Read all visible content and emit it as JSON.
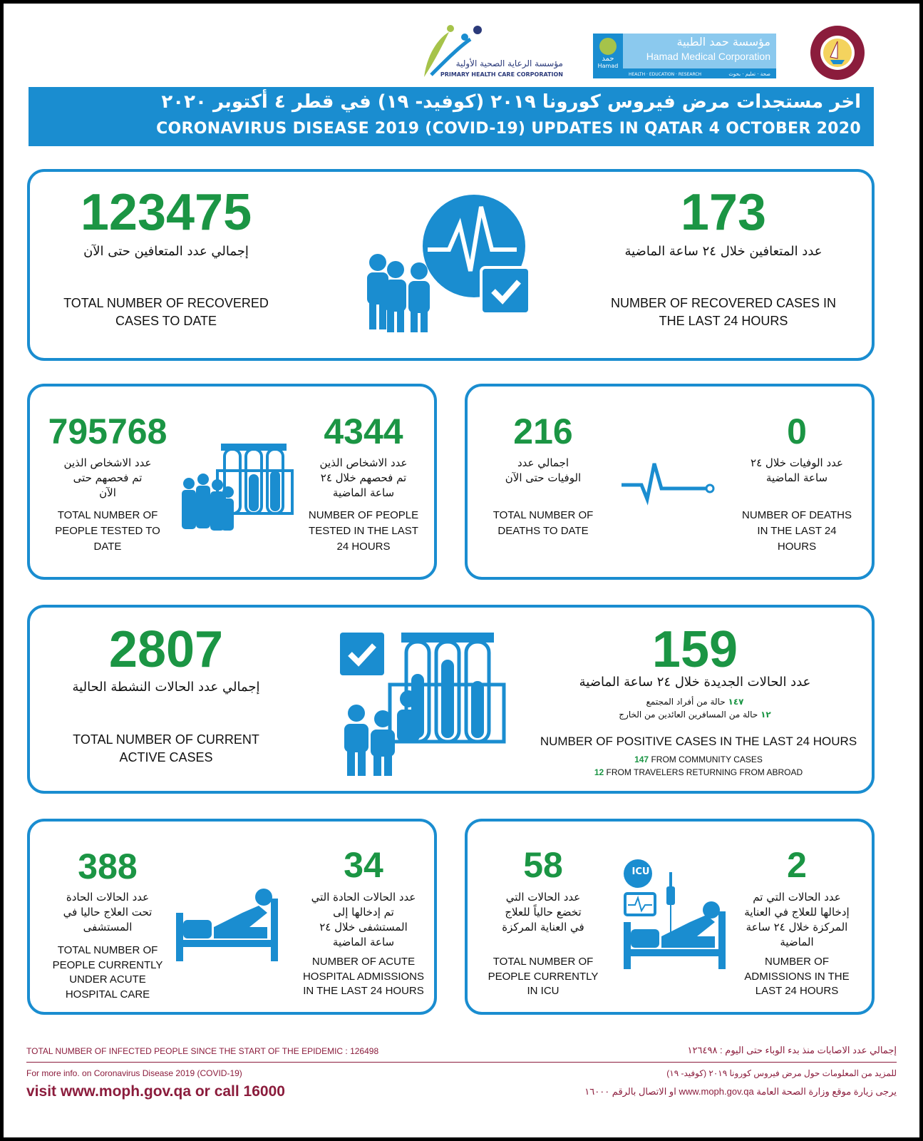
{
  "logos": {
    "phcc_ar": "مؤسسة الرعاية الصحية الأولية",
    "phcc_en": "PRIMARY HEALTH CARE CORPORATION",
    "hmc_ar": "مؤسسة حمد الطبية",
    "hmc_en": "Hamad Medical Corporation",
    "hmc_tag": "HEALTH · EDUCATION · RESEARCH",
    "hmc_tag_ar": "صحة · تعليم · بحوث",
    "hmc_short_ar": "حمد",
    "hmc_short": "Hamad",
    "moph": "دولة قطر وزارة الصحة العامة"
  },
  "header": {
    "title_ar": "اخر مستجدات مرض فيروس كورونا ٢٠١٩ (كوفيد- ١٩) في قطر ٤ أكتوبر ٢٠٢٠",
    "title_en": "CORONAVIRUS DISEASE 2019 (COVID-19) UPDATES IN QATAR 4 OCTOBER 2020"
  },
  "colors": {
    "accent": "#1a8dd0",
    "number": "#1b9544",
    "footer": "#8b1c3c"
  },
  "recovered": {
    "total": {
      "value": "123475",
      "ar": "إجمالي عدد المتعافين حتى الآن",
      "en": "TOTAL NUMBER OF RECOVERED\nCASES TO DATE"
    },
    "last24": {
      "value": "173",
      "ar": "عدد المتعافين خلال ٢٤ ساعة الماضية",
      "en": "NUMBER OF RECOVERED CASES IN\nTHE LAST 24 HOURS"
    },
    "icon": "recovered-people-heartbeat-check-icon"
  },
  "tests": {
    "total": {
      "value": "795768",
      "ar": "عدد الاشخاص الذين\nتم فحصهم حتى\nالآن",
      "en": "TOTAL NUMBER OF\nPEOPLE TESTED TO\nDATE"
    },
    "last24": {
      "value": "4344",
      "ar": "عدد الاشخاص الذين\nتم فحصهم خلال ٢٤\nساعة الماضية",
      "en": "NUMBER OF PEOPLE\nTESTED IN THE LAST\n24 HOURS"
    },
    "icon": "people-test-tubes-icon"
  },
  "deaths": {
    "total": {
      "value": "216",
      "ar": "اجمالي عدد\nالوفيات حتى الآن",
      "en": "TOTAL NUMBER OF\nDEATHS TO DATE"
    },
    "last24": {
      "value": "0",
      "ar": "عدد الوفيات خلال ٢٤\nساعة الماضية",
      "en": "NUMBER OF DEATHS\nIN THE LAST 24\nHOURS"
    },
    "icon": "flatline-icon"
  },
  "active": {
    "total": {
      "value": "2807",
      "ar": "إجمالي عدد الحالات النشطة الحالية",
      "en": "TOTAL NUMBER OF CURRENT\nACTIVE CASES"
    },
    "new": {
      "value": "159",
      "ar": "عدد الحالات الجديدة خلال ٢٤ ساعة الماضية",
      "ar_sub1_num": "١٤٧",
      "ar_sub1": " حالة من أفراد المجتمع",
      "ar_sub2_num": "١٢",
      "ar_sub2": " حالة من المسافرين العائدين من الخارج",
      "en": "NUMBER OF POSITIVE CASES IN THE LAST 24 HOURS",
      "en_sub1_num": "147",
      "en_sub1": " FROM COMMUNITY CASES",
      "en_sub2_num": "12",
      "en_sub2": " FROM TRAVELERS RETURNING FROM ABROAD"
    },
    "icon": "people-test-tubes-check-icon"
  },
  "hospital": {
    "total": {
      "value": "388",
      "ar": "عدد الحالات الحادة\nتحت العلاج حاليا في\nالمستشفى",
      "en": "TOTAL NUMBER OF\nPEOPLE CURRENTLY\nUNDER ACUTE\nHOSPITAL CARE"
    },
    "last24": {
      "value": "34",
      "ar": "عدد الحالات الحادة التي\nتم إدخالها إلى\nالمستشفى خلال ٢٤\nساعة الماضية",
      "en": "NUMBER OF ACUTE\nHOSPITAL ADMISSIONS\nIN THE LAST 24 HOURS"
    },
    "icon": "hospital-bed-icon"
  },
  "icu": {
    "total": {
      "value": "58",
      "ar": "عدد الحالات التي\nتخضع حالياً للعلاج\nفي العناية المركزة",
      "en": "TOTAL NUMBER OF\nPEOPLE CURRENTLY\nIN ICU"
    },
    "last24": {
      "value": "2",
      "ar": "عدد الحالات التي تم\nإدخالها للعلاج في العناية\nالمركزة خلال ٢٤ ساعة\nالماضية",
      "en": "NUMBER OF\nADMISSIONS IN THE\nLAST 24 HOURS"
    },
    "icu_label": "ICU",
    "icon": "icu-bed-monitor-icon"
  },
  "footer": {
    "infected_en": "TOTAL NUMBER OF INFECTED PEOPLE SINCE THE START OF THE EPIDEMIC  : 126498",
    "infected_ar": "إجمالي عدد الاصابات منذ بدء الوباء حتى اليوم : ١٢٦٤٩٨",
    "info_en": "For more info. on Coronavirus Disease 2019 (COVID-19)",
    "visit_en": "visit www.moph.gov.qa or call 16000",
    "info_ar": "للمزيد من المعلومات حول مرض فيروس كورونا ٢٠١٩ (كوفيد- ١٩)",
    "visit_ar": "يرجى زيارة موقع وزارة الصحة العامة www.moph.gov.qa او الاتصال بالرقم ١٦٠٠٠"
  }
}
